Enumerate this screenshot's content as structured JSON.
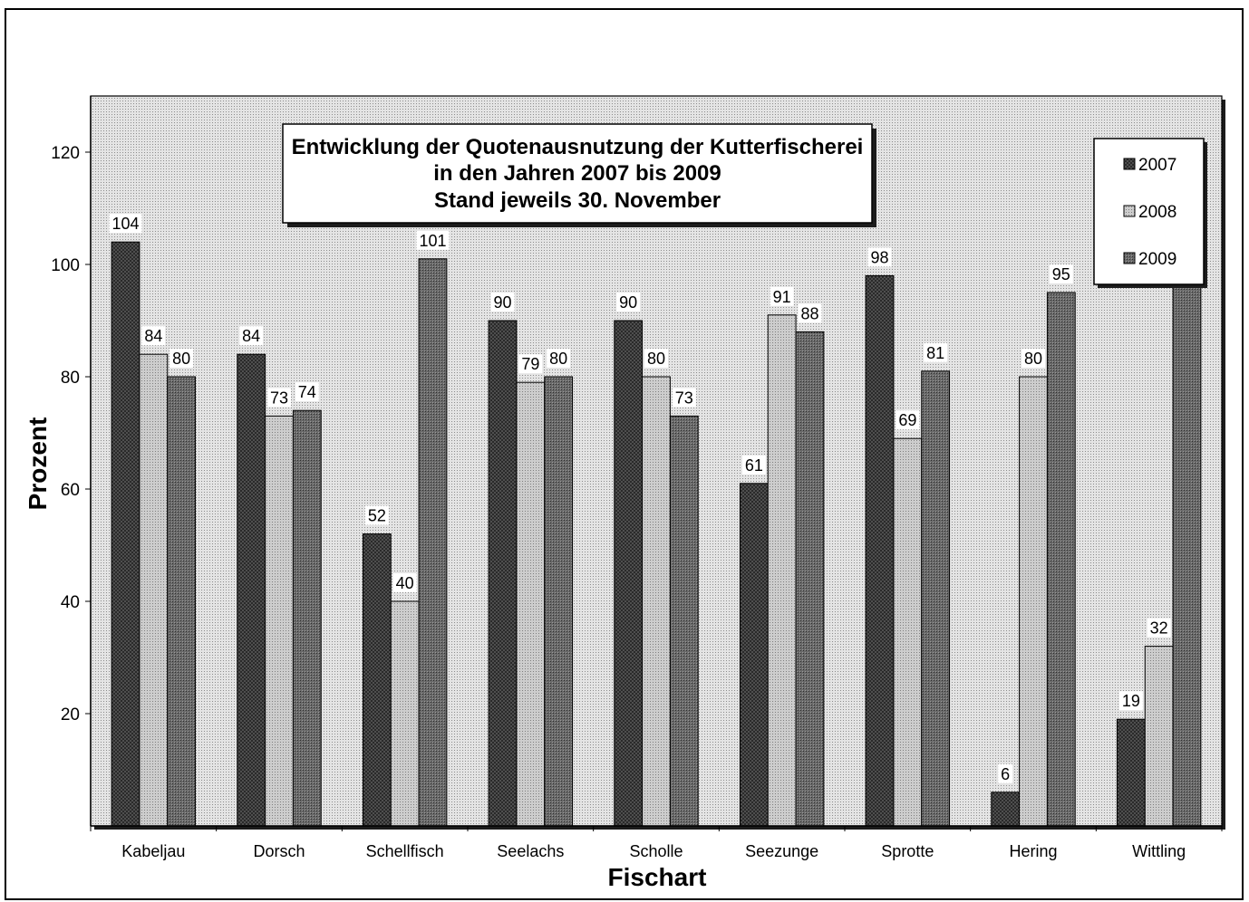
{
  "chart_data": {
    "type": "bar",
    "title": [
      "Entwicklung der Quotenausnutzung der Kutterfischerei",
      "in den Jahren 2007 bis 2009",
      "Stand jeweils 30. November"
    ],
    "xlabel": "Fischart",
    "ylabel": "Prozent",
    "ylim": [
      0,
      130
    ],
    "yticks": [
      20,
      40,
      60,
      80,
      100,
      120
    ],
    "categories": [
      "Kabeljau",
      "Dorsch",
      "Schellfisch",
      "Seelachs",
      "Scholle",
      "Seezunge",
      "Sprotte",
      "Hering",
      "Wittling"
    ],
    "series": [
      {
        "name": "2007",
        "color": "#5a5a5a",
        "values": [
          104,
          84,
          52,
          90,
          90,
          61,
          98,
          6,
          19
        ]
      },
      {
        "name": "2008",
        "color": "#cdcdcd",
        "values": [
          84,
          73,
          40,
          79,
          80,
          91,
          69,
          80,
          32
        ]
      },
      {
        "name": "2009",
        "color": "#6a6a6a",
        "values": [
          80,
          74,
          101,
          80,
          73,
          88,
          81,
          95,
          100
        ]
      }
    ],
    "data_labels": true,
    "legend_position": "top-right",
    "grid": false,
    "plot_background": "#e4e4e4"
  }
}
